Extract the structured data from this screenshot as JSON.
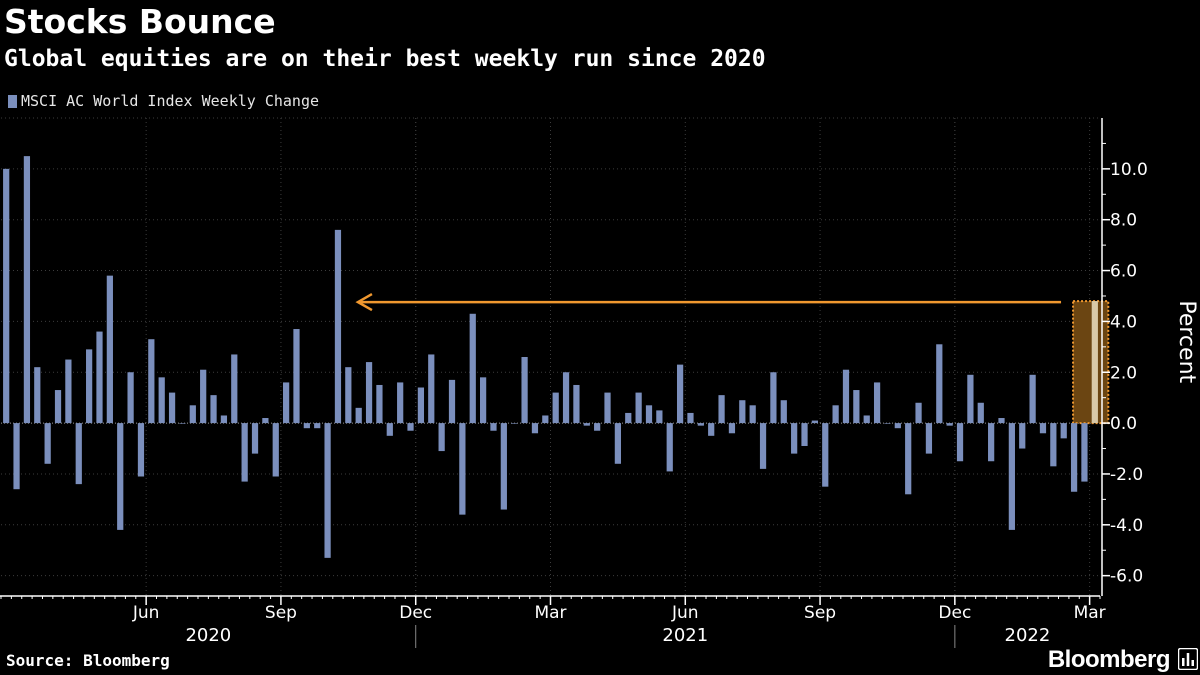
{
  "header": {
    "title": "Stocks Bounce",
    "subtitle": "Global equities are on their best weekly run since 2020"
  },
  "footer": {
    "source": "Source: Bloomberg",
    "brand": "Bloomberg"
  },
  "colors": {
    "background": "#000000",
    "bar": "#7b8fbd",
    "highlight_bar": "#d9c9a8",
    "highlight_fill": "#6b4512",
    "highlight_stroke": "#f0982f",
    "arrow": "#f0982f",
    "grid": "#3c3c3c",
    "text": "#ffffff",
    "axis": "#ffffff"
  },
  "icons": {
    "brand_mark": "bloomberg-terminal-icon",
    "arrow": "arrow-left-icon"
  },
  "chart_data": {
    "type": "bar",
    "title": "Stocks Bounce",
    "subtitle": "Global equities are on their best weekly run since 2020",
    "series": [
      {
        "name": "MSCI AC World Index Weekly Change",
        "values": [
          10.0,
          -2.6,
          10.5,
          2.2,
          -1.6,
          1.3,
          2.5,
          -2.4,
          2.9,
          3.6,
          5.8,
          -4.2,
          2.0,
          -2.1,
          3.3,
          1.8,
          1.2,
          0.0,
          0.7,
          2.1,
          1.1,
          0.3,
          2.7,
          -2.3,
          -1.2,
          0.2,
          -2.1,
          1.6,
          3.7,
          -0.2,
          -0.2,
          -5.3,
          7.6,
          2.2,
          0.6,
          2.4,
          1.5,
          -0.5,
          1.6,
          -0.3,
          1.4,
          2.7,
          -1.1,
          1.7,
          -3.6,
          4.3,
          1.8,
          -0.3,
          -3.4,
          0.0,
          2.6,
          -0.4,
          0.3,
          1.2,
          2.0,
          1.5,
          -0.1,
          -0.3,
          1.2,
          -1.6,
          0.4,
          1.2,
          0.7,
          0.5,
          -1.9,
          2.3,
          0.4,
          -0.1,
          -0.5,
          1.1,
          -0.4,
          0.9,
          0.7,
          -1.8,
          2.0,
          0.9,
          -1.2,
          -0.9,
          0.1,
          -2.5,
          0.7,
          2.1,
          1.3,
          0.3,
          1.6,
          0.0,
          -0.2,
          -2.8,
          0.8,
          -1.2,
          3.1,
          -0.1,
          -1.5,
          1.9,
          0.8,
          -1.5,
          0.2,
          -4.2,
          -1.0,
          1.9,
          -0.4,
          -1.7,
          -0.6,
          -2.7,
          -2.3,
          4.8
        ]
      }
    ],
    "highlight": {
      "index": 105,
      "value": 4.8,
      "annotation": "arrow pointing back to the comparable week in 2020"
    },
    "arrow_target_index": 32,
    "ylabel": "Percent",
    "xlabel": "",
    "ylim": [
      -6.8,
      12.0
    ],
    "yticks": [
      -6.0,
      -4.0,
      -2.0,
      0.0,
      2.0,
      4.0,
      6.0,
      8.0,
      10.0
    ],
    "ytick_labels": [
      "-6.0",
      "-4.0",
      "-2.0",
      "0.0",
      "2.0",
      "4.0",
      "6.0",
      "8.0",
      "10.0"
    ],
    "y_axis_position": "right",
    "grid": true,
    "legend_position": "top-left",
    "month_ticks": [
      {
        "label": "Jun",
        "week": 14
      },
      {
        "label": "Sep",
        "week": 27
      },
      {
        "label": "Dec",
        "week": 40
      },
      {
        "label": "Mar",
        "week": 53
      },
      {
        "label": "Jun",
        "week": 66
      },
      {
        "label": "Sep",
        "week": 79
      },
      {
        "label": "Dec",
        "week": 92
      },
      {
        "label": "Mar",
        "week": 105
      }
    ],
    "years": [
      {
        "label": "2020",
        "start_week": 0,
        "end_week": 40
      },
      {
        "label": "2021",
        "start_week": 40,
        "end_week": 92
      },
      {
        "label": "2022",
        "start_week": 92,
        "end_week": 106
      }
    ],
    "total_weeks": 106
  }
}
